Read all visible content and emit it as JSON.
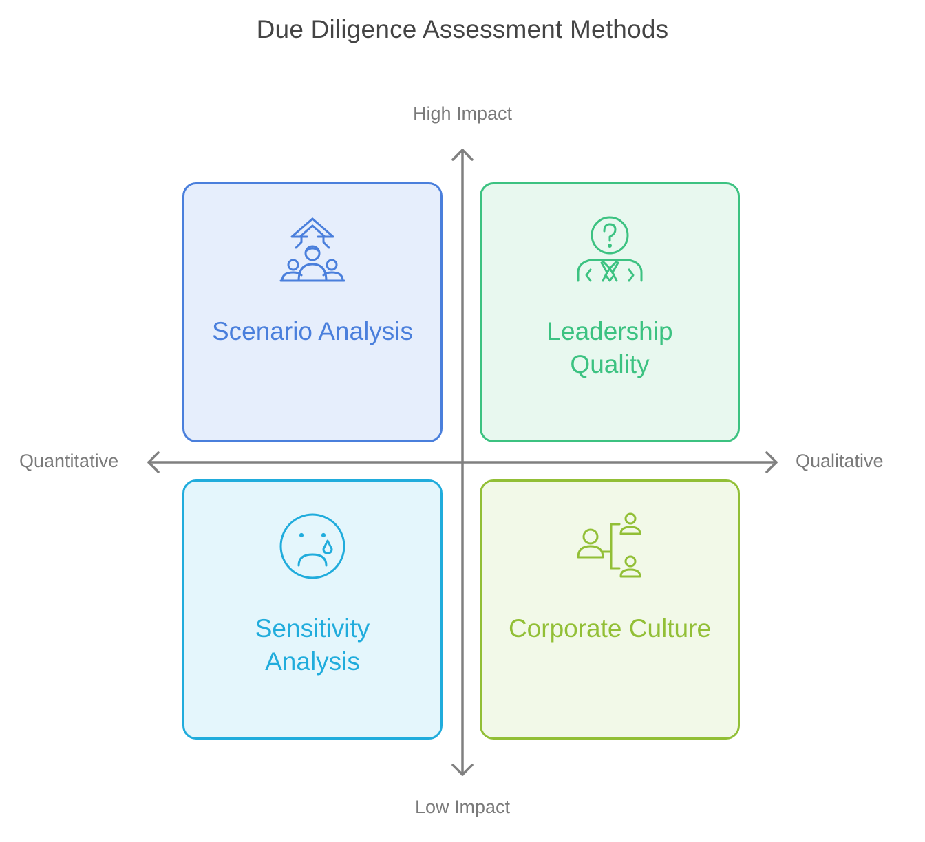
{
  "title": "Due Diligence Assessment Methods",
  "axes": {
    "top": "High Impact",
    "bottom": "Low Impact",
    "left": "Quantitative",
    "right": "Qualitative",
    "color": "#808080"
  },
  "quadrants": [
    {
      "position": "top-left",
      "label_lines": [
        "Scenario Analysis"
      ],
      "icon": "people-up-arrow-icon",
      "accent": "#4a7fdc",
      "fill": "#e6eefc"
    },
    {
      "position": "top-right",
      "label_lines": [
        "Leadership",
        "Quality"
      ],
      "icon": "leader-question-icon",
      "accent": "#3cc281",
      "fill": "#e8f8ef"
    },
    {
      "position": "bottom-left",
      "label_lines": [
        "Sensitivity",
        "Analysis"
      ],
      "icon": "sad-tear-face-icon",
      "accent": "#20acdc",
      "fill": "#e4f6fc"
    },
    {
      "position": "bottom-right",
      "label_lines": [
        "Corporate Culture"
      ],
      "icon": "org-chart-people-icon",
      "accent": "#92bf36",
      "fill": "#f2f9e8"
    }
  ]
}
